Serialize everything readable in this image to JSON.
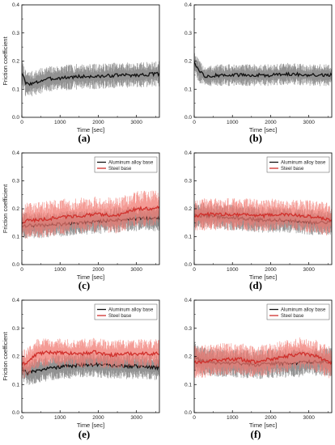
{
  "figure": {
    "colors": {
      "aluminum": "#111111",
      "aluminum_band": "#8c8c8c",
      "steel": "#d0302c",
      "steel_band": "#f07a72"
    }
  },
  "chart_data": [
    {
      "type": "line",
      "panel_label": "(a)",
      "xlabel": "Time [sec]",
      "ylabel": "Friction coefficient",
      "xlim": [
        0,
        3600
      ],
      "ylim": [
        0.0,
        0.4
      ],
      "xticks": [
        "0",
        "1000",
        "2000",
        "3000"
      ],
      "yticks": [
        "0.0",
        "0.1",
        "0.2",
        "0.3",
        "0.4"
      ],
      "legend": null,
      "series": [
        {
          "key": "aluminum",
          "x": [
            0,
            100,
            300,
            600,
            1000,
            1500,
            2000,
            2500,
            3000,
            3600
          ],
          "y": [
            0.16,
            0.12,
            0.12,
            0.135,
            0.14,
            0.145,
            0.145,
            0.15,
            0.15,
            0.155
          ],
          "band": 0.035
        }
      ]
    },
    {
      "type": "line",
      "panel_label": "(b)",
      "xlabel": "Time [sec]",
      "ylabel": "",
      "xlim": [
        0,
        3600
      ],
      "ylim": [
        0.0,
        0.4
      ],
      "xticks": [
        "0",
        "1000",
        "2000",
        "3000"
      ],
      "yticks": [
        "0.0",
        "0.1",
        "0.2",
        "0.3",
        "0.4"
      ],
      "legend": null,
      "series": [
        {
          "key": "aluminum",
          "x": [
            0,
            60,
            150,
            300,
            600,
            1000,
            1500,
            2000,
            2500,
            3000,
            3600
          ],
          "y": [
            0.2,
            0.18,
            0.16,
            0.145,
            0.15,
            0.15,
            0.15,
            0.15,
            0.155,
            0.15,
            0.15
          ],
          "band": 0.03
        }
      ]
    },
    {
      "type": "line",
      "panel_label": "(c)",
      "xlabel": "Time [sec]",
      "ylabel": "Friction coefficient",
      "xlim": [
        0,
        3600
      ],
      "ylim": [
        0.0,
        0.4
      ],
      "xticks": [
        "0",
        "1000",
        "2000",
        "3000"
      ],
      "yticks": [
        "0.0",
        "0.1",
        "0.2",
        "0.3",
        "0.4"
      ],
      "legend": [
        "Aluminum alloy base",
        "Steel base"
      ],
      "series": [
        {
          "key": "aluminum",
          "name": "Aluminum alloy base",
          "x": [
            0,
            200,
            500,
            1000,
            1500,
            2000,
            2500,
            3000,
            3600
          ],
          "y": [
            0.14,
            0.14,
            0.14,
            0.145,
            0.15,
            0.155,
            0.16,
            0.165,
            0.165
          ],
          "band": 0.035
        },
        {
          "key": "steel",
          "name": "Steel base",
          "x": [
            0,
            200,
            500,
            1000,
            1500,
            2000,
            2500,
            2800,
            3000,
            3300,
            3600
          ],
          "y": [
            0.15,
            0.16,
            0.16,
            0.17,
            0.175,
            0.18,
            0.175,
            0.19,
            0.2,
            0.2,
            0.205
          ],
          "band": 0.05
        }
      ]
    },
    {
      "type": "line",
      "panel_label": "(d)",
      "xlabel": "Time [sec]",
      "ylabel": "",
      "xlim": [
        0,
        3600
      ],
      "ylim": [
        0.0,
        0.4
      ],
      "xticks": [
        "0",
        "1000",
        "2000",
        "3000"
      ],
      "yticks": [
        "0.0",
        "0.1",
        "0.2",
        "0.3",
        "0.4"
      ],
      "legend": [
        "Aluminum alloy base",
        "Steel base"
      ],
      "series": [
        {
          "key": "aluminum",
          "name": "Aluminum alloy base",
          "x": [
            0,
            300,
            800,
            1300,
            1800,
            2300,
            2800,
            3200,
            3600
          ],
          "y": [
            0.175,
            0.175,
            0.17,
            0.165,
            0.16,
            0.16,
            0.155,
            0.15,
            0.15
          ],
          "band": 0.035
        },
        {
          "key": "steel",
          "name": "Steel base",
          "x": [
            0,
            300,
            800,
            1300,
            1800,
            2300,
            2800,
            3200,
            3600
          ],
          "y": [
            0.175,
            0.18,
            0.18,
            0.18,
            0.175,
            0.18,
            0.175,
            0.17,
            0.16
          ],
          "band": 0.045
        }
      ]
    },
    {
      "type": "line",
      "panel_label": "(e)",
      "xlabel": "Time [sec]",
      "ylabel": "Friction coefficient",
      "xlim": [
        0,
        3600
      ],
      "ylim": [
        0.0,
        0.4
      ],
      "xticks": [
        "0",
        "1000",
        "2000",
        "3000"
      ],
      "yticks": [
        "0.0",
        "0.1",
        "0.2",
        "0.3",
        "0.4"
      ],
      "legend": [
        "Aluminum alloy base",
        "Steel base"
      ],
      "series": [
        {
          "key": "aluminum",
          "name": "Aluminum alloy base",
          "x": [
            0,
            150,
            400,
            800,
            1200,
            1600,
            2000,
            2500,
            3000,
            3600
          ],
          "y": [
            0.16,
            0.14,
            0.15,
            0.16,
            0.165,
            0.17,
            0.17,
            0.165,
            0.165,
            0.16
          ],
          "band": 0.035
        },
        {
          "key": "steel",
          "name": "Steel base",
          "x": [
            0,
            150,
            400,
            800,
            1200,
            1600,
            1900,
            2300,
            2800,
            3200,
            3600
          ],
          "y": [
            0.17,
            0.18,
            0.21,
            0.215,
            0.21,
            0.21,
            0.215,
            0.205,
            0.21,
            0.21,
            0.21
          ],
          "band": 0.04
        }
      ]
    },
    {
      "type": "line",
      "panel_label": "(f)",
      "xlabel": "Time [sec]",
      "ylabel": "",
      "xlim": [
        0,
        3600
      ],
      "ylim": [
        0.0,
        0.4
      ],
      "xticks": [
        "0",
        "1000",
        "2000",
        "3000"
      ],
      "yticks": [
        "0.0",
        "0.1",
        "0.2",
        "0.3",
        "0.4"
      ],
      "legend": [
        "Aluminum alloy base",
        "Steel base"
      ],
      "series": [
        {
          "key": "aluminum",
          "name": "Aluminum alloy base",
          "x": [
            0,
            150,
            400,
            800,
            1200,
            1600,
            2000,
            2500,
            3000,
            3600
          ],
          "y": [
            0.2,
            0.185,
            0.18,
            0.175,
            0.175,
            0.17,
            0.175,
            0.175,
            0.18,
            0.18
          ],
          "band": 0.04
        },
        {
          "key": "steel",
          "name": "Steel base",
          "x": [
            0,
            150,
            400,
            800,
            1200,
            1600,
            2000,
            2400,
            2800,
            3200,
            3600
          ],
          "y": [
            0.18,
            0.18,
            0.185,
            0.19,
            0.19,
            0.18,
            0.19,
            0.2,
            0.21,
            0.2,
            0.175
          ],
          "band": 0.045
        }
      ]
    }
  ]
}
